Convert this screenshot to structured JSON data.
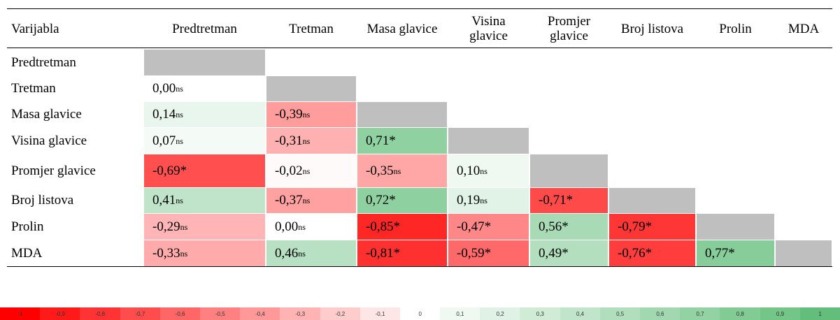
{
  "table": {
    "headers": [
      "Varijabla",
      "Predtretman",
      "Tretman",
      "Masa glavice",
      "Visina glavice",
      "Promjer glavice",
      "Broj listova",
      "Prolin",
      "MDA"
    ],
    "rows": [
      {
        "label": "Predtretman",
        "cells": []
      },
      {
        "label": "Tretman",
        "cells": [
          {
            "text": "0,00",
            "sup": "ns"
          }
        ]
      },
      {
        "label": "Masa glavice",
        "cells": [
          {
            "text": "0,14",
            "sup": "ns"
          },
          {
            "text": "-0,39",
            "sup": "ns"
          }
        ]
      },
      {
        "label": "Visina glavice",
        "cells": [
          {
            "text": "0,07",
            "sup": "ns"
          },
          {
            "text": "-0,31",
            "sup": "ns"
          },
          {
            "text": "0,71*"
          }
        ]
      },
      {
        "label": "Promjer glavice",
        "cells": [
          {
            "text": "-0,69*"
          },
          {
            "text": "-0,02",
            "sup": "ns"
          },
          {
            "text": "-0,35",
            "sup": "ns"
          },
          {
            "text": "0,10",
            "sup": "ns"
          }
        ]
      },
      {
        "label": "Broj listova",
        "cells": [
          {
            "text": "0,41",
            "sup": "ns"
          },
          {
            "text": "-0,37",
            "sup": "ns"
          },
          {
            "text": "0,72*"
          },
          {
            "text": "0,19",
            "sup": "ns"
          },
          {
            "text": "-0,71*"
          }
        ]
      },
      {
        "label": "Prolin",
        "cells": [
          {
            "text": "-0,29",
            "sup": "ns"
          },
          {
            "text": "0,00",
            "sup": "ns"
          },
          {
            "text": "-0,85*"
          },
          {
            "text": "-0,47*"
          },
          {
            "text": "0,56*"
          },
          {
            "text": "-0,79*"
          }
        ]
      },
      {
        "label": "MDA",
        "cells": [
          {
            "text": "-0,33",
            "sup": "ns"
          },
          {
            "text": "0,46",
            "sup": "ns"
          },
          {
            "text": "-0,81*"
          },
          {
            "text": "-0,59*"
          },
          {
            "text": "0,49*"
          },
          {
            "text": "-0,76*"
          },
          {
            "text": "0,77*"
          }
        ]
      }
    ]
  },
  "legend": {
    "labels": [
      "-1",
      "-0,9",
      "-0,8",
      "-0,7",
      "-0,6",
      "-0,5",
      "-0,4",
      "-0,3",
      "-0,2",
      "-0,1",
      "0",
      "0,1",
      "0,2",
      "0,3",
      "0,4",
      "0,5",
      "0,6",
      "0,7",
      "0,8",
      "0,9",
      "1"
    ],
    "negative_color": "#ff0000",
    "positive_color": "#63be7b",
    "diagonal_color": "#bfbfbf"
  }
}
